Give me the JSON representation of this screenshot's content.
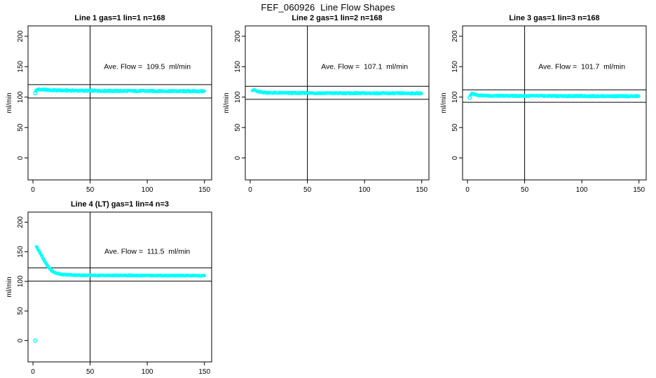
{
  "figure": {
    "title": "FEF_060926  Line Flow Shapes",
    "background": "#ffffff",
    "point_color": "#00ffff",
    "line_color": "#000000"
  },
  "chart_data": [
    {
      "type": "scatter",
      "title": "Line 1 gas=1 lin=1 n=168",
      "annotation": "Ave. Flow =  109.5  ml/min",
      "ave_flow": 109.5,
      "n": 168,
      "ylabel": "ml/min",
      "x_ticks": [
        0,
        50,
        100,
        150
      ],
      "y_ticks": [
        0,
        50,
        100,
        150,
        200
      ],
      "xlim": [
        -4.3,
        156.3
      ],
      "ylim": [
        -36,
        217
      ],
      "vline_x": 50,
      "hlines": [
        120.5,
        98.6
      ],
      "annotation_pos": [
        100,
        150
      ],
      "anchors": [
        [
          2.5,
          110.5
        ],
        [
          3.5,
          112
        ],
        [
          5,
          112.8
        ],
        [
          7,
          112.5
        ],
        [
          10,
          112
        ],
        [
          15,
          111.5
        ],
        [
          25,
          111
        ],
        [
          40,
          110.6
        ],
        [
          70,
          110.2
        ],
        [
          110,
          110
        ],
        [
          150,
          109.6
        ]
      ],
      "outliers": [
        [
          2,
          106.5
        ]
      ],
      "jitter": 1.1,
      "grid": {
        "row": 0,
        "col": 0
      }
    },
    {
      "type": "scatter",
      "title": "Line 2 gas=1 lin=2 n=168",
      "annotation": "Ave. Flow =  107.1  ml/min",
      "ave_flow": 107.1,
      "n": 168,
      "ylabel": "ml/min",
      "x_ticks": [
        0,
        50,
        100,
        150
      ],
      "y_ticks": [
        0,
        50,
        100,
        150,
        200
      ],
      "xlim": [
        -4.3,
        156.3
      ],
      "ylim": [
        -36,
        217
      ],
      "vline_x": 50,
      "hlines": [
        117.8,
        96.4
      ],
      "annotation_pos": [
        100,
        150
      ],
      "anchors": [
        [
          2,
          111.8
        ],
        [
          3.5,
          111.8
        ],
        [
          5,
          110.3
        ],
        [
          7,
          109
        ],
        [
          10,
          108
        ],
        [
          14,
          107.4
        ],
        [
          20,
          107
        ],
        [
          35,
          106.8
        ],
        [
          70,
          106.5
        ],
        [
          150,
          106.2
        ]
      ],
      "outliers": [],
      "jitter": 1.0,
      "grid": {
        "row": 0,
        "col": 1
      }
    },
    {
      "type": "scatter",
      "title": "Line 3 gas=1 lin=3 n=168",
      "annotation": "Ave. Flow =  101.7  ml/min",
      "ave_flow": 101.7,
      "n": 168,
      "ylabel": "ml/min",
      "x_ticks": [
        0,
        50,
        100,
        150
      ],
      "y_ticks": [
        0,
        50,
        100,
        150,
        200
      ],
      "xlim": [
        -4.3,
        156.3
      ],
      "ylim": [
        -36,
        217
      ],
      "vline_x": 50,
      "hlines": [
        111.9,
        91.5
      ],
      "annotation_pos": [
        100,
        150
      ],
      "anchors": [
        [
          2.5,
          103.5
        ],
        [
          4,
          105.8
        ],
        [
          6,
          104.8
        ],
        [
          9,
          103.4
        ],
        [
          13,
          102.6
        ],
        [
          20,
          102.2
        ],
        [
          40,
          102
        ],
        [
          80,
          101.8
        ],
        [
          150,
          101.5
        ]
      ],
      "outliers": [
        [
          2,
          99
        ]
      ],
      "jitter": 0.95,
      "grid": {
        "row": 0,
        "col": 2
      }
    },
    {
      "type": "scatter",
      "title": "Line 4 (LT) gas=1 lin=4 n=3",
      "annotation": "Ave. Flow =  111.5  ml/min",
      "ave_flow": 111.5,
      "n": 3,
      "ylabel": "ml/min",
      "x_ticks": [
        0,
        50,
        100,
        150
      ],
      "y_ticks": [
        0,
        50,
        100,
        150,
        200
      ],
      "xlim": [
        -4.3,
        156.3
      ],
      "ylim": [
        -36,
        217
      ],
      "vline_x": 50,
      "hlines": [
        122.7,
        100.4
      ],
      "annotation_pos": [
        100,
        150
      ],
      "anchors": [
        [
          3,
          159
        ],
        [
          4,
          156
        ],
        [
          5,
          152.5
        ],
        [
          6,
          149
        ],
        [
          7,
          145.5
        ],
        [
          8,
          142
        ],
        [
          9,
          138.5
        ],
        [
          10,
          135
        ],
        [
          11,
          131.5
        ],
        [
          12,
          128.5
        ],
        [
          13,
          125.5
        ],
        [
          14,
          123
        ],
        [
          15,
          120.8
        ],
        [
          16,
          118.8
        ],
        [
          17,
          117.2
        ],
        [
          18,
          115.8
        ],
        [
          20,
          114
        ],
        [
          22,
          113
        ],
        [
          25,
          112
        ],
        [
          28,
          111.4
        ],
        [
          32,
          111
        ],
        [
          40,
          110.5
        ],
        [
          60,
          110.1
        ],
        [
          100,
          109.9
        ],
        [
          150,
          109.7
        ]
      ],
      "outliers": [
        [
          2,
          0
        ]
      ],
      "jitter": 0.8,
      "grid": {
        "row": 1,
        "col": 0
      }
    }
  ]
}
